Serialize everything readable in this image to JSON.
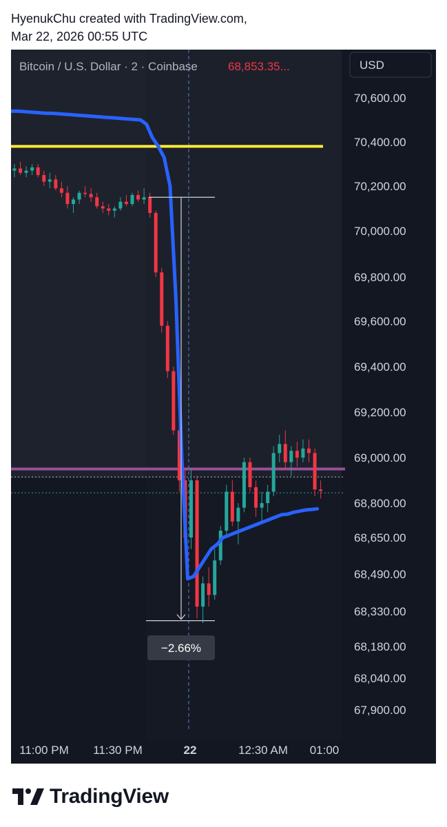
{
  "caption": {
    "line1": "HyenukChu created with TradingView.com,",
    "line2": "Mar 22, 2026 00:55 UTC"
  },
  "brand": {
    "name": "TradingView",
    "logo_icon": "tradingview-logo-icon"
  },
  "chart_data": {
    "type": "candlestick",
    "symbol_title": "Bitcoin / U.S. Dollar · 2 · Coinbase",
    "last_price_label": "68,853.35...",
    "currency": "USD",
    "x_ticks": [
      "11:00 PM",
      "11:30 PM",
      "22",
      "12:30 AM",
      "01:00"
    ],
    "y_ticks": [
      "70,600.00",
      "70,400.00",
      "70,200.00",
      "70,000.00",
      "69,800.00",
      "69,600.00",
      "69,400.00",
      "69,200.00",
      "69,000.00",
      "68,800.00",
      "68,650.00",
      "68,490.00",
      "68,330.00",
      "68,180.00",
      "68,040.00",
      "67,900.00"
    ],
    "measure": {
      "label": "−2.66%",
      "from_price": 70150,
      "to_price": 68290
    },
    "horizontal_lines": [
      {
        "name": "yellow-level",
        "price": 70380,
        "color": "#ffeb3b"
      },
      {
        "name": "purple-level",
        "price": 68950,
        "color": "#9c4f96"
      },
      {
        "name": "dotted-level-1",
        "price": 68915,
        "color": "#b2b5be"
      },
      {
        "name": "dotted-level-2",
        "price": 68845,
        "color": "#26a69a"
      }
    ],
    "blue_line": {
      "color": "#2962ff",
      "values": [
        70540,
        70540,
        70538,
        70536,
        70534,
        70532,
        70530,
        70530,
        70528,
        70526,
        70524,
        70522,
        70520,
        70518,
        70516,
        70514,
        70512,
        70510,
        70508,
        70506,
        70504,
        70502,
        70500,
        70480,
        70420,
        70380,
        70330,
        70200,
        69700,
        69000,
        68470,
        68480,
        68520,
        68560,
        68600,
        68620,
        68650,
        68660,
        68670,
        68680,
        68690,
        68700,
        68710,
        68720,
        68730,
        68740,
        68750,
        68752,
        68760,
        68765,
        68770,
        68772,
        68775
      ]
    },
    "candles": [
      {
        "o": 70270,
        "h": 70300,
        "l": 70240,
        "c": 70280
      },
      {
        "o": 70280,
        "h": 70310,
        "l": 70250,
        "c": 70260
      },
      {
        "o": 70260,
        "h": 70290,
        "l": 70240,
        "c": 70270
      },
      {
        "o": 70270,
        "h": 70300,
        "l": 70250,
        "c": 70285
      },
      {
        "o": 70285,
        "h": 70300,
        "l": 70240,
        "c": 70250
      },
      {
        "o": 70250,
        "h": 70270,
        "l": 70200,
        "c": 70220
      },
      {
        "o": 70220,
        "h": 70260,
        "l": 70190,
        "c": 70230
      },
      {
        "o": 70230,
        "h": 70250,
        "l": 70180,
        "c": 70190
      },
      {
        "o": 70190,
        "h": 70220,
        "l": 70150,
        "c": 70170
      },
      {
        "o": 70170,
        "h": 70200,
        "l": 70100,
        "c": 70120
      },
      {
        "o": 70120,
        "h": 70150,
        "l": 70080,
        "c": 70140
      },
      {
        "o": 70140,
        "h": 70180,
        "l": 70120,
        "c": 70170
      },
      {
        "o": 70170,
        "h": 70200,
        "l": 70150,
        "c": 70165
      },
      {
        "o": 70165,
        "h": 70190,
        "l": 70130,
        "c": 70150
      },
      {
        "o": 70150,
        "h": 70170,
        "l": 70100,
        "c": 70110
      },
      {
        "o": 70110,
        "h": 70130,
        "l": 70080,
        "c": 70100
      },
      {
        "o": 70100,
        "h": 70120,
        "l": 70070,
        "c": 70090
      },
      {
        "o": 70090,
        "h": 70110,
        "l": 70060,
        "c": 70100
      },
      {
        "o": 70100,
        "h": 70150,
        "l": 70090,
        "c": 70130
      },
      {
        "o": 70130,
        "h": 70160,
        "l": 70110,
        "c": 70120
      },
      {
        "o": 70120,
        "h": 70170,
        "l": 70110,
        "c": 70160
      },
      {
        "o": 70160,
        "h": 70180,
        "l": 70130,
        "c": 70140
      },
      {
        "o": 70140,
        "h": 70190,
        "l": 70120,
        "c": 70150
      },
      {
        "o": 70150,
        "h": 70170,
        "l": 70060,
        "c": 70080
      },
      {
        "o": 70080,
        "h": 70090,
        "l": 69800,
        "c": 69820
      },
      {
        "o": 69820,
        "h": 69840,
        "l": 69550,
        "c": 69580
      },
      {
        "o": 69580,
        "h": 69600,
        "l": 69350,
        "c": 69380
      },
      {
        "o": 69380,
        "h": 69400,
        "l": 69100,
        "c": 69120
      },
      {
        "o": 69120,
        "h": 69150,
        "l": 68850,
        "c": 68900
      },
      {
        "o": 68900,
        "h": 68950,
        "l": 68600,
        "c": 68650
      },
      {
        "o": 68650,
        "h": 68950,
        "l": 68600,
        "c": 68900
      },
      {
        "o": 68900,
        "h": 68920,
        "l": 68300,
        "c": 68350
      },
      {
        "o": 68350,
        "h": 68480,
        "l": 68280,
        "c": 68450
      },
      {
        "o": 68450,
        "h": 68520,
        "l": 68350,
        "c": 68400
      },
      {
        "o": 68400,
        "h": 68600,
        "l": 68380,
        "c": 68550
      },
      {
        "o": 68550,
        "h": 68700,
        "l": 68530,
        "c": 68680
      },
      {
        "o": 68680,
        "h": 68880,
        "l": 68660,
        "c": 68850
      },
      {
        "o": 68850,
        "h": 68900,
        "l": 68700,
        "c": 68720
      },
      {
        "o": 68720,
        "h": 68800,
        "l": 68620,
        "c": 68780
      },
      {
        "o": 68780,
        "h": 69000,
        "l": 68760,
        "c": 68980
      },
      {
        "o": 68980,
        "h": 69000,
        "l": 68850,
        "c": 68870
      },
      {
        "o": 68870,
        "h": 68900,
        "l": 68740,
        "c": 68780
      },
      {
        "o": 68780,
        "h": 68850,
        "l": 68720,
        "c": 68800
      },
      {
        "o": 68800,
        "h": 68880,
        "l": 68760,
        "c": 68850
      },
      {
        "o": 68850,
        "h": 69050,
        "l": 68830,
        "c": 69020
      },
      {
        "o": 69020,
        "h": 69100,
        "l": 68980,
        "c": 69060
      },
      {
        "o": 69060,
        "h": 69120,
        "l": 68950,
        "c": 68980
      },
      {
        "o": 68980,
        "h": 69050,
        "l": 68920,
        "c": 69030
      },
      {
        "o": 69030,
        "h": 69070,
        "l": 68960,
        "c": 69000
      },
      {
        "o": 69000,
        "h": 69080,
        "l": 68980,
        "c": 69040
      },
      {
        "o": 69040,
        "h": 69080,
        "l": 68980,
        "c": 69020
      },
      {
        "o": 69020,
        "h": 69040,
        "l": 68830,
        "c": 68860
      },
      {
        "o": 68860,
        "h": 68900,
        "l": 68820,
        "c": 68853
      }
    ]
  }
}
